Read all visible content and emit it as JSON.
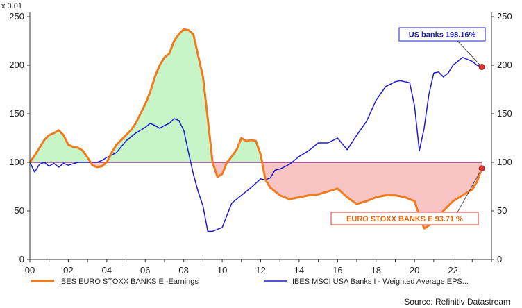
{
  "chart_data": {
    "type": "line",
    "unit_label": "x 0.01",
    "x_ticks": [
      "00",
      "02",
      "04",
      "06",
      "08",
      "10",
      "12",
      "14",
      "16",
      "18",
      "20",
      "22"
    ],
    "y_ticks": [
      0,
      50,
      100,
      150,
      200,
      250
    ],
    "xlim": [
      2000,
      2024
    ],
    "ylim": [
      0,
      250
    ],
    "baseline": 100,
    "grid": false,
    "legend_position": "bottom",
    "colors": {
      "euro": "#f07a1e",
      "us": "#1c1ccf",
      "baseline": "#7a1f7a",
      "fill_above": "#c8f5c8",
      "fill_below": "#f8c4c4",
      "us_callout_border": "#1c1ccf",
      "eu_callout_border": "#e3342f",
      "marker": "#e3342f"
    },
    "series": [
      {
        "name": "IBES EURO STOXX BANKS E -Earnings",
        "key": "euro",
        "x": [
          2000,
          2000.25,
          2000.5,
          2000.75,
          2001,
          2001.25,
          2001.5,
          2001.75,
          2002,
          2002.25,
          2002.5,
          2002.75,
          2003,
          2003.25,
          2003.5,
          2003.75,
          2004,
          2004.25,
          2004.5,
          2004.75,
          2005,
          2005.25,
          2005.5,
          2005.75,
          2006,
          2006.25,
          2006.5,
          2006.75,
          2007,
          2007.25,
          2007.5,
          2007.75,
          2008,
          2008.25,
          2008.5,
          2008.75,
          2009,
          2009.25,
          2009.5,
          2009.75,
          2010,
          2010.25,
          2010.5,
          2010.75,
          2011,
          2011.25,
          2011.5,
          2011.75,
          2012,
          2012.25,
          2012.5,
          2012.75,
          2013,
          2013.5,
          2014,
          2014.5,
          2015,
          2015.5,
          2016,
          2016.5,
          2017,
          2017.5,
          2018,
          2018.5,
          2019,
          2019.5,
          2020,
          2020.25,
          2020.5,
          2020.75,
          2021,
          2021.5,
          2022,
          2022.5,
          2023,
          2023.25,
          2023.5
        ],
        "values": [
          100,
          107,
          115,
          123,
          128,
          130,
          133,
          128,
          118,
          116,
          115,
          112,
          105,
          97,
          95,
          96,
          100,
          110,
          118,
          123,
          128,
          133,
          140,
          150,
          160,
          172,
          188,
          200,
          208,
          212,
          225,
          232,
          237,
          236,
          232,
          210,
          188,
          145,
          100,
          85,
          88,
          100,
          106,
          113,
          125,
          122,
          123,
          122,
          108,
          82,
          74,
          70,
          66,
          62,
          64,
          66,
          67,
          70,
          73,
          64,
          57,
          60,
          64,
          66,
          66,
          64,
          60,
          45,
          32,
          35,
          40,
          50,
          60,
          66,
          72,
          80,
          93.71
        ]
      },
      {
        "name": "IBES MSCI USA Banks I - Weighted Average EPS...",
        "key": "us",
        "x": [
          2000,
          2000.25,
          2000.5,
          2000.75,
          2001,
          2001.25,
          2001.5,
          2001.75,
          2002,
          2002.5,
          2003,
          2003.25,
          2003.5,
          2003.75,
          2004,
          2004.5,
          2005,
          2005.5,
          2006,
          2006.25,
          2006.5,
          2006.75,
          2007,
          2007.25,
          2007.5,
          2007.75,
          2008,
          2008.25,
          2008.5,
          2008.75,
          2009,
          2009.25,
          2009.5,
          2009.75,
          2010,
          2010.5,
          2011,
          2011.5,
          2012,
          2012.25,
          2012.5,
          2012.75,
          2013,
          2013.5,
          2014,
          2014.5,
          2015,
          2015.5,
          2016,
          2016.5,
          2017,
          2017.5,
          2018,
          2018.5,
          2019,
          2019.25,
          2019.5,
          2019.75,
          2020,
          2020.25,
          2020.5,
          2020.75,
          2021,
          2021.25,
          2021.5,
          2021.75,
          2022,
          2022.5,
          2023,
          2023.25,
          2023.5
        ],
        "values": [
          100,
          90,
          98,
          100,
          96,
          99,
          95,
          99,
          97,
          100,
          100,
          100,
          100,
          102,
          105,
          110,
          122,
          130,
          136,
          140,
          138,
          135,
          138,
          140,
          145,
          143,
          133,
          110,
          88,
          70,
          55,
          29,
          29,
          31,
          33,
          58,
          66,
          74,
          83,
          82,
          84,
          92,
          93,
          98,
          106,
          112,
          120,
          120,
          125,
          113,
          128,
          142,
          164,
          178,
          183,
          184,
          183,
          182,
          158,
          112,
          135,
          170,
          192,
          193,
          188,
          192,
          200,
          208,
          204,
          200,
          198.16
        ]
      }
    ],
    "callouts": {
      "us": "US banks  198.16%",
      "euro": "EURO STOXX BANKS E  93.71 %"
    },
    "legend": {
      "euro": "IBES EURO STOXX BANKS E -Earnings",
      "us": "IBES MSCI USA Banks I - Weighted Average EPS..."
    },
    "source": "Source: Refinitiv Datastream"
  }
}
